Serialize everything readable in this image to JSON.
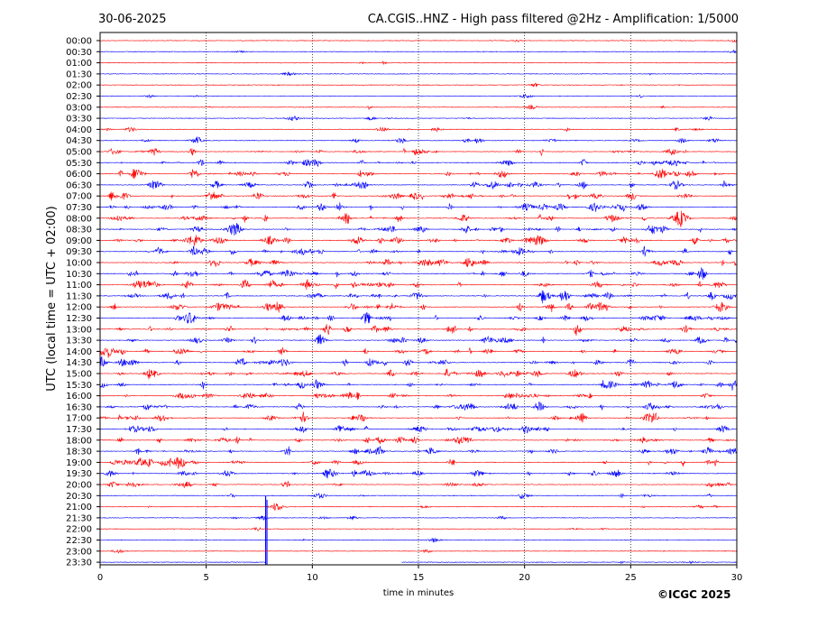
{
  "chart_data": {
    "type": "line",
    "date": "30-06-2025",
    "title": "CA.CGIS..HNZ - High pass filtered @2Hz - Amplification: 1/5000",
    "ylabel": "UTC (local time = UTC + 02:00)",
    "xlabel": "time in minutes",
    "xlim": [
      0,
      30
    ],
    "x_ticks": [
      "0",
      "5",
      "10",
      "15",
      "20",
      "25",
      "30"
    ],
    "x_tick_values": [
      0,
      5,
      10,
      15,
      20,
      25,
      30
    ],
    "grid": "vertical dotted at 5-minute intervals",
    "trace_colors": [
      "#ff0000",
      "#0000ff"
    ],
    "row_labels": [
      "00:00",
      "00:30",
      "01:00",
      "01:30",
      "02:00",
      "02:30",
      "03:00",
      "03:30",
      "04:00",
      "04:30",
      "05:00",
      "05:30",
      "06:00",
      "06:30",
      "07:00",
      "07:30",
      "08:00",
      "08:30",
      "09:00",
      "09:30",
      "10:00",
      "10:30",
      "11:00",
      "11:30",
      "12:00",
      "12:30",
      "13:00",
      "13:30",
      "14:00",
      "14:30",
      "15:00",
      "15:30",
      "16:00",
      "16:30",
      "17:00",
      "17:30",
      "18:00",
      "18:30",
      "19:00",
      "19:30",
      "20:00",
      "20:30",
      "21:00",
      "21:30",
      "22:00",
      "22:30",
      "23:00",
      "23:30"
    ],
    "activity": [
      0.05,
      0.05,
      0.04,
      0.05,
      0.04,
      0.08,
      0.08,
      0.1,
      0.2,
      0.3,
      0.45,
      0.55,
      0.65,
      0.6,
      0.6,
      0.6,
      0.6,
      0.65,
      0.65,
      0.65,
      0.6,
      0.6,
      0.6,
      0.6,
      0.6,
      0.6,
      0.6,
      0.55,
      0.55,
      0.55,
      0.6,
      0.6,
      0.6,
      0.55,
      0.55,
      0.55,
      0.55,
      0.55,
      0.55,
      0.5,
      0.3,
      0.2,
      0.15,
      0.1,
      0.06,
      0.05,
      0.04,
      0.05
    ],
    "data_gap": {
      "row": "23:30",
      "from_min": 7.8,
      "to_min": 14.2
    },
    "spike": {
      "row": "21:30",
      "at_min": 7.8
    }
  },
  "copyright": "©ICGC 2025"
}
